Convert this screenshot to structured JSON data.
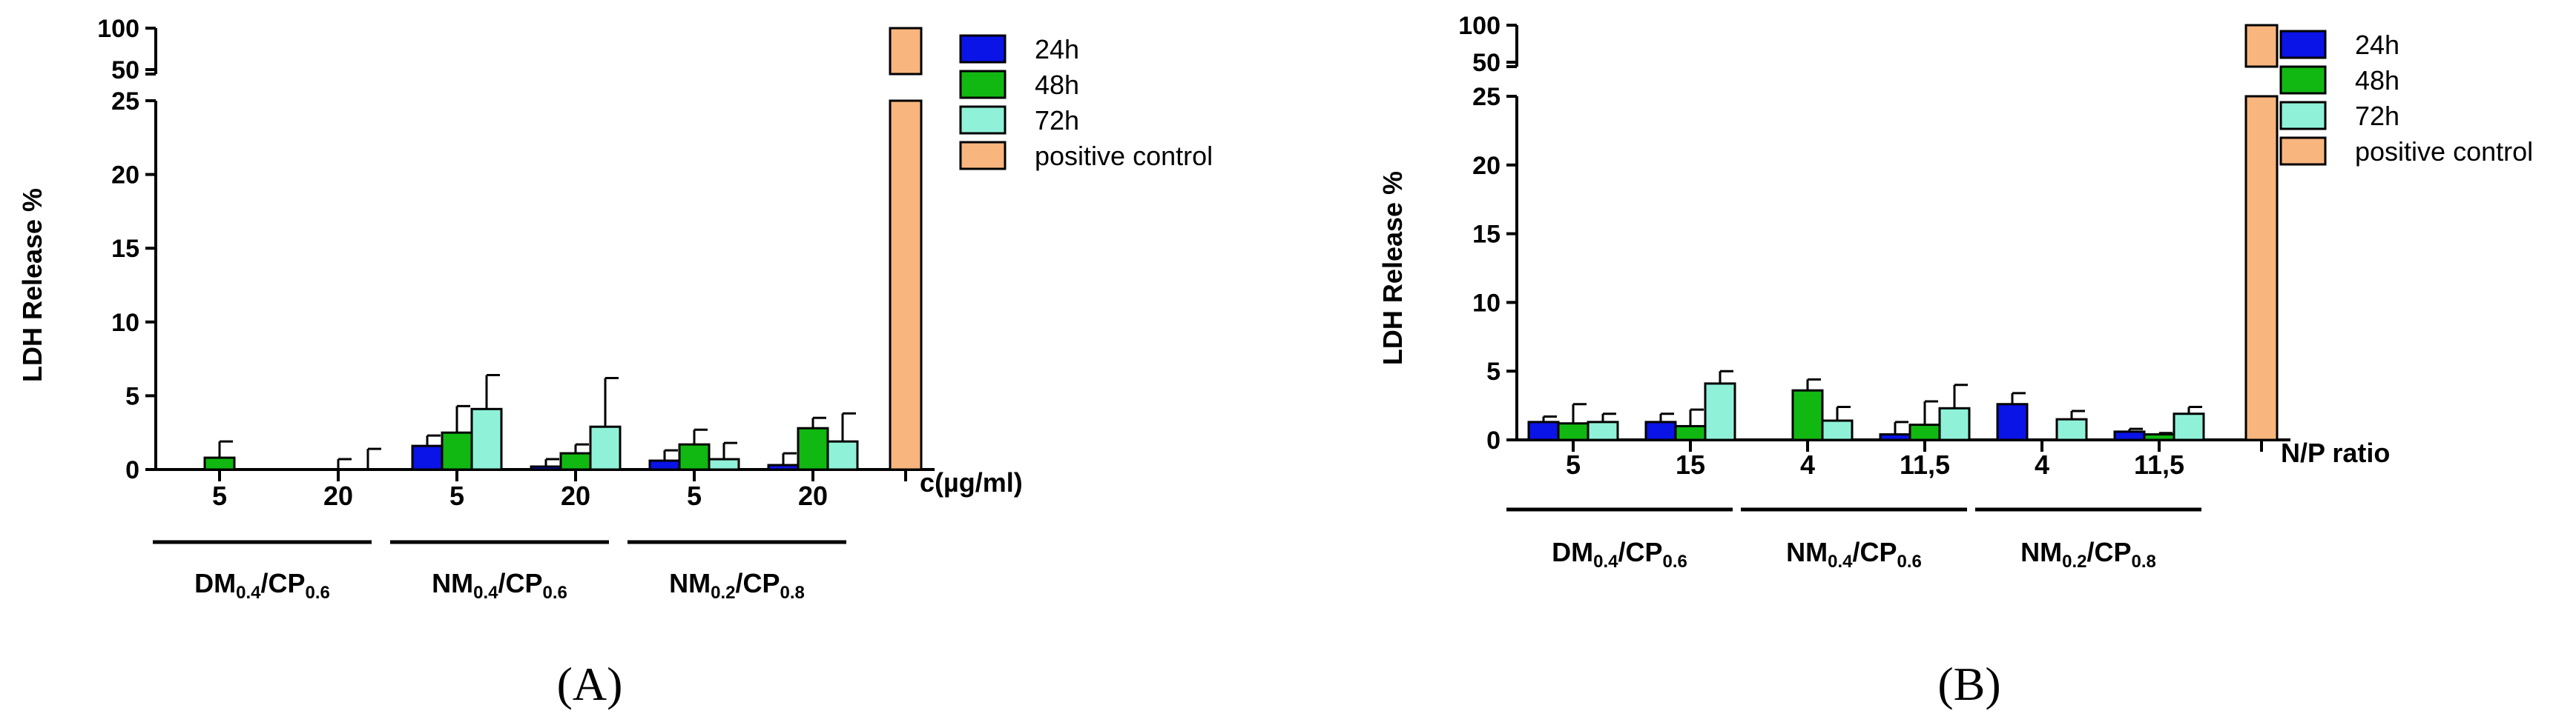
{
  "colors": {
    "24h": "#0a14e6",
    "48h": "#12b812",
    "72h": "#8ff2d8",
    "positive_control": "#f8b57e"
  },
  "legend": [
    "24h",
    "48h",
    "72h",
    "positive control"
  ],
  "chart_data": [
    {
      "panel": "(A)",
      "type": "bar",
      "ylabel": "LDH Release %",
      "xlabel": "c(µg/ml)",
      "yaxis_break": true,
      "yticks_lower": [
        0,
        5,
        10,
        15,
        20,
        25
      ],
      "yticks_upper": [
        50,
        100
      ],
      "ylim_lower": [
        0,
        25
      ],
      "ylim_upper": [
        50,
        100
      ],
      "groups": [
        {
          "label": "DM",
          "sub1": "0.4",
          "mid": "/CP",
          "sub2": "0.6",
          "categories": [
            "5",
            "20"
          ]
        },
        {
          "label": "NM",
          "sub1": "0.4",
          "mid": "/CP",
          "sub2": "0.6",
          "categories": [
            "5",
            "20"
          ]
        },
        {
          "label": "NM",
          "sub1": "0.2",
          "mid": "/CP",
          "sub2": "0.8",
          "categories": [
            "5",
            "20"
          ]
        }
      ],
      "series": [
        {
          "name": "24h",
          "values": [
            0,
            0,
            1.6,
            0.2,
            0.6,
            0.3
          ],
          "errors": [
            0,
            0,
            0.7,
            0.5,
            0.7,
            0.8
          ]
        },
        {
          "name": "48h",
          "values": [
            0.8,
            0,
            2.5,
            1.1,
            1.7,
            2.8
          ],
          "errors": [
            1.1,
            0.7,
            1.8,
            0.6,
            1.0,
            0.7
          ]
        },
        {
          "name": "72h",
          "values": [
            0,
            0,
            4.1,
            2.9,
            0.7,
            1.9
          ],
          "errors": [
            0,
            1.4,
            2.3,
            3.3,
            1.1,
            1.9
          ]
        }
      ],
      "positive_control": 100
    },
    {
      "panel": "(B)",
      "type": "bar",
      "ylabel": "LDH Release %",
      "xlabel": "N/P ratio",
      "yaxis_break": true,
      "yticks_lower": [
        0,
        5,
        10,
        15,
        20,
        25
      ],
      "yticks_upper": [
        50,
        100
      ],
      "ylim_lower": [
        0,
        25
      ],
      "ylim_upper": [
        50,
        100
      ],
      "groups": [
        {
          "label": "DM",
          "sub1": "0.4",
          "mid": "/CP",
          "sub2": "0.6",
          "categories": [
            "5",
            "15"
          ]
        },
        {
          "label": "NM",
          "sub1": "0.4",
          "mid": "/CP",
          "sub2": "0.6",
          "categories": [
            "4",
            "11,5"
          ]
        },
        {
          "label": "NM",
          "sub1": "0.2",
          "mid": "/CP",
          "sub2": "0.8",
          "categories": [
            "4",
            "11,5"
          ]
        }
      ],
      "series": [
        {
          "name": "24h",
          "values": [
            1.3,
            1.3,
            0,
            0.4,
            2.6,
            0.6
          ],
          "errors": [
            0.4,
            0.6,
            0,
            0.9,
            0.8,
            0.2
          ]
        },
        {
          "name": "48h",
          "values": [
            1.2,
            1.0,
            3.6,
            1.1,
            0,
            0.4
          ],
          "errors": [
            1.4,
            1.2,
            0.8,
            1.7,
            0,
            0.1
          ]
        },
        {
          "name": "72h",
          "values": [
            1.3,
            4.1,
            1.4,
            2.3,
            1.5,
            1.9
          ],
          "errors": [
            0.6,
            0.9,
            1.0,
            1.7,
            0.6,
            0.5
          ]
        }
      ],
      "positive_control": 100
    }
  ]
}
